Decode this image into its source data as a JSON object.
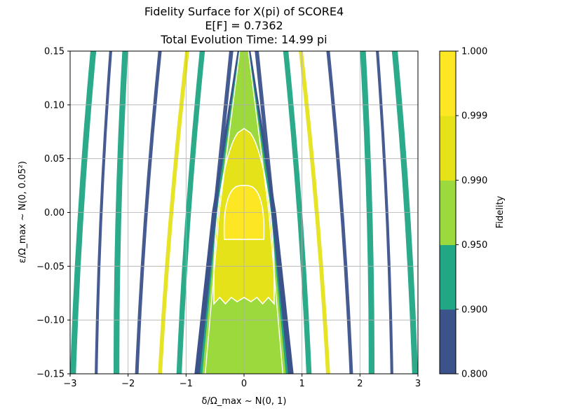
{
  "chart_data": {
    "type": "contour",
    "title": [
      "Fidelity Surface for X(pi) of SCORE4",
      "E[F] = 0.7362",
      "Total Evolution Time: 14.99 pi"
    ],
    "xlabel": "δ/Ω_max ~ N(0, 1)",
    "ylabel": "ε/Ω_max ~ N(0, 0.05²)",
    "xlim": [
      -3,
      3
    ],
    "ylim": [
      -0.15,
      0.15
    ],
    "x_ticks": [
      "−3",
      "−2",
      "−1",
      "0",
      "1",
      "2",
      "3"
    ],
    "y_ticks": [
      "−0.15",
      "−0.10",
      "−0.05",
      "0.00",
      "0.05",
      "0.10",
      "0.15"
    ],
    "grid": true,
    "colorbar": {
      "label": "Fidelity",
      "levels": [
        0.8,
        0.9,
        0.95,
        0.99,
        0.999,
        1.0
      ],
      "level_labels": [
        "0.800",
        "0.900",
        "0.950",
        "0.990",
        "0.999",
        "1.000"
      ],
      "colors": [
        "#3b528b",
        "#21a784",
        "#9bd93c",
        "#e6e21a",
        "#fde725"
      ]
    },
    "contour_line_levels": [
      0.95,
      0.99,
      0.999
    ],
    "central_region": {
      "band_0_95_half_width_at_eps": [
        [
          -0.15,
          0.72
        ],
        [
          0.0,
          0.46
        ],
        [
          0.15,
          0.08
        ]
      ],
      "band_0_99_peak_eps": 0.078,
      "band_0_99_floor_eps": -0.085,
      "band_0_999_peak_eps": 0.025,
      "band_0_999_floor_eps": -0.025
    },
    "side_fringe_centers_at_eps": [
      {
        "delta_at_-0.15": 0.82,
        "delta_at_0.15": 0.22
      },
      {
        "delta_at_-0.15": 1.12,
        "delta_at_0.15": 0.72
      },
      {
        "delta_at_-0.15": 1.45,
        "delta_at_0.15": 0.98
      },
      {
        "delta_at_-0.15": 1.85,
        "delta_at_0.15": 1.45
      },
      {
        "delta_at_-0.15": 2.2,
        "delta_at_0.15": 2.05
      },
      {
        "delta_at_-0.15": 2.55,
        "delta_at_0.15": 2.3
      },
      {
        "delta_at_-0.15": 2.95,
        "delta_at_0.15": 2.6
      }
    ]
  }
}
